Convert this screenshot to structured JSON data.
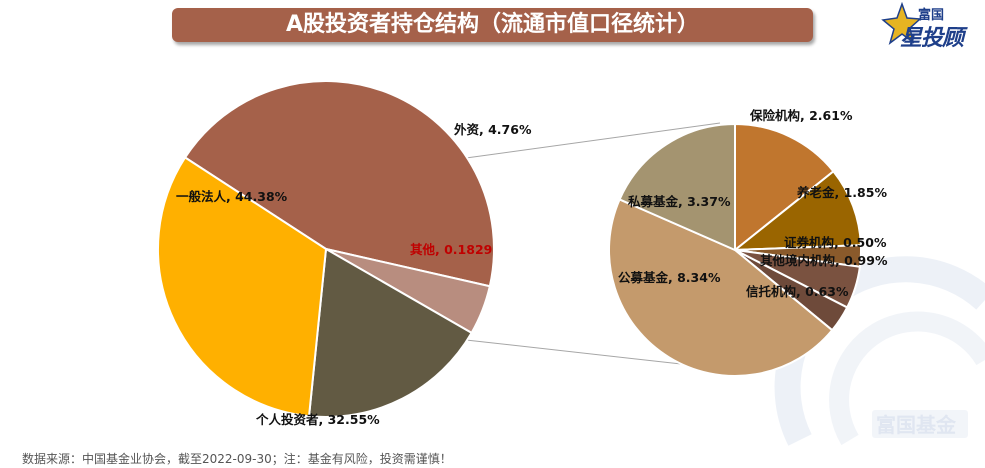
{
  "title": "A股投资者持仓结构（流通市值口径统计）",
  "logo": {
    "top_text": "富国",
    "main_text": "星投顾",
    "star_color": "#e6b422",
    "text_color": "#1e3f8a"
  },
  "watermark": {
    "text": "富国基金",
    "color": "#c7d3e6"
  },
  "footer": "数据来源：中国基金业协会，截至2022-09-30；注：基金有风险，投资需谨慎！",
  "chart_data": [
    {
      "type": "pie",
      "title": "",
      "slices": [
        {
          "label": "一般法人, 44.38%",
          "value": 44.38,
          "color": "#a5614a"
        },
        {
          "label": "外资, 4.76%",
          "value": 4.76,
          "color": "#b88d7f"
        },
        {
          "label": "其他, 0.1829",
          "value": 18.29,
          "color": "#625a43",
          "label_color": "#c00000"
        },
        {
          "label": "个人投资者, 32.55%",
          "value": 32.55,
          "color": "#ffb000"
        }
      ]
    },
    {
      "type": "pie",
      "title": "",
      "slices": [
        {
          "label": "保险机构, 2.61%",
          "value": 2.61,
          "color": "#c0762e"
        },
        {
          "label": "养老金, 1.85%",
          "value": 1.85,
          "color": "#9a6500"
        },
        {
          "label": "证券机构, 0.50%",
          "value": 0.5,
          "color": "#8a5a2b"
        },
        {
          "label": "其他境内机构, 0.99%",
          "value": 0.99,
          "color": "#7a5240"
        },
        {
          "label": "信托机构, 0.63%",
          "value": 0.63,
          "color": "#6e4a3a"
        },
        {
          "label": "公募基金, 8.34%",
          "value": 8.34,
          "color": "#c49a6c"
        },
        {
          "label": "私募基金, 3.37%",
          "value": 3.37,
          "color": "#a49470"
        }
      ]
    }
  ]
}
